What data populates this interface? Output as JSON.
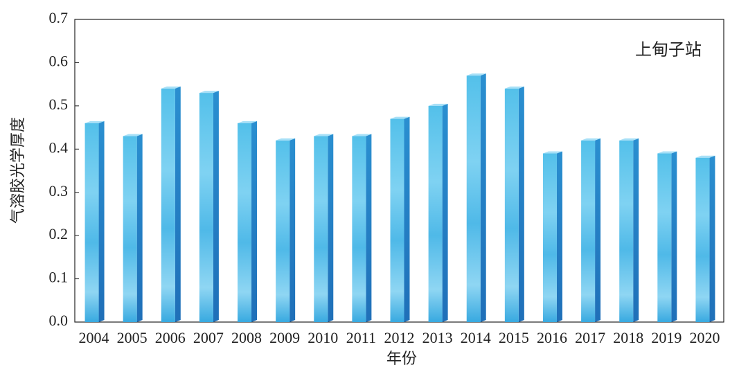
{
  "chart_data": {
    "type": "bar",
    "annotation": "上甸子站",
    "x_label": "年份",
    "y_label": "气溶胶光学厚度",
    "categories": [
      "2004",
      "2005",
      "2006",
      "2007",
      "2008",
      "2009",
      "2010",
      "2011",
      "2012",
      "2013",
      "2014",
      "2015",
      "2016",
      "2017",
      "2018",
      "2019",
      "2020"
    ],
    "values": [
      0.46,
      0.43,
      0.54,
      0.53,
      0.46,
      0.42,
      0.43,
      0.43,
      0.47,
      0.5,
      0.57,
      0.54,
      0.39,
      0.42,
      0.42,
      0.39,
      0.38
    ],
    "color": "#3fb3e6",
    "ylim": [
      0,
      0.7
    ],
    "yticks": [
      {
        "value": 0,
        "label": "0.0"
      },
      0.1,
      0.2,
      0.3,
      0.4,
      0.5,
      0.6,
      0.7
    ]
  }
}
